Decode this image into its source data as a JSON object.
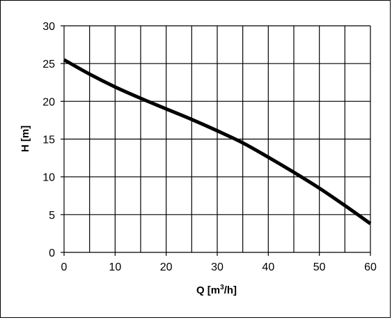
{
  "chart_data": {
    "type": "line",
    "title": "",
    "xlabel": {
      "base": "Q [m",
      "superscript": "3",
      "suffix": "/h]"
    },
    "ylabel": "H [m]",
    "xlim": [
      0,
      60
    ],
    "ylim": [
      0,
      30
    ],
    "xticks": [
      0,
      10,
      20,
      30,
      40,
      50,
      60
    ],
    "yticks": [
      0,
      5,
      10,
      15,
      20,
      25,
      30
    ],
    "x_grid_step": 5,
    "y_grid_step": 5,
    "grid": true,
    "legend": "none",
    "series": [
      {
        "color": "#000000",
        "x": [
          0,
          5,
          10,
          15,
          20,
          25,
          30,
          35,
          40,
          45,
          50,
          55,
          60
        ],
        "y": [
          25.5,
          23.6,
          21.9,
          20.4,
          19.0,
          17.6,
          16.1,
          14.5,
          12.6,
          10.6,
          8.5,
          6.2,
          3.8
        ]
      }
    ]
  }
}
